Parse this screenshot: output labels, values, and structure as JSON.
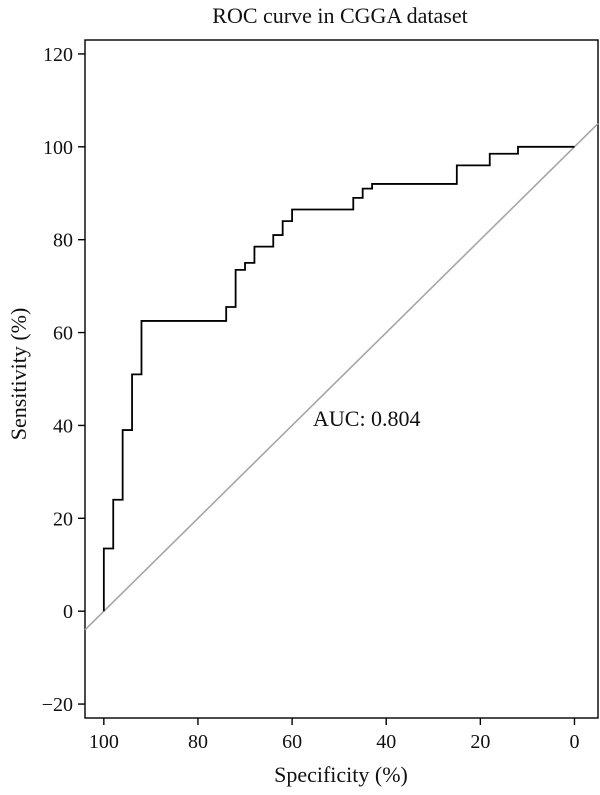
{
  "chart_data": {
    "type": "line",
    "title": "ROC curve in CGGA dataset",
    "xlabel": "Specificity (%)",
    "ylabel": "Sensitivity (%)",
    "xlim": [
      104,
      -5
    ],
    "ylim": [
      -23,
      123
    ],
    "x_ticks": [
      100,
      80,
      60,
      40,
      20,
      0
    ],
    "y_ticks": [
      -20,
      0,
      20,
      40,
      60,
      80,
      100,
      120
    ],
    "x_tick_labels": [
      "100",
      "80",
      "60",
      "40",
      "20",
      "0"
    ],
    "y_tick_labels": [
      "−20",
      "0",
      "20",
      "40",
      "60",
      "80",
      "100",
      "120"
    ],
    "annotation": "AUC: 0.804",
    "reference_line": {
      "x": [
        104,
        -5
      ],
      "y": [
        -4,
        105
      ],
      "color": "#a6a6a6"
    },
    "series": [
      {
        "color": "#000000",
        "x": [
          100,
          100,
          98,
          98,
          96,
          96,
          94,
          94,
          92,
          92,
          74,
          74,
          72,
          72,
          70,
          70,
          68,
          68,
          64,
          64,
          62,
          62,
          60,
          60,
          47,
          47,
          45,
          45,
          43,
          43,
          41,
          41,
          25,
          25,
          18,
          18,
          12,
          12,
          0
        ],
        "y": [
          0,
          13.5,
          13.5,
          24,
          24,
          39,
          39,
          51,
          51,
          62.5,
          62.5,
          65.5,
          65.5,
          73.5,
          73.5,
          75,
          75,
          78.5,
          78.5,
          81,
          81,
          84,
          84,
          86.5,
          86.5,
          89,
          89,
          91,
          91,
          92,
          92,
          92,
          92,
          96,
          96,
          98.5,
          98.5,
          100,
          100
        ]
      }
    ]
  }
}
